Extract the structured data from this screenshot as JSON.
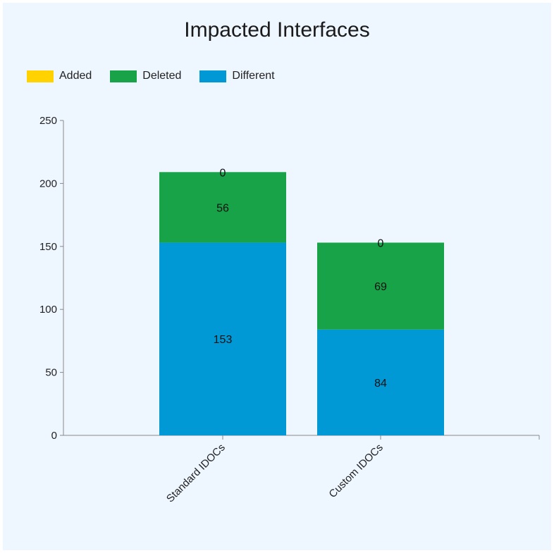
{
  "chart_data": {
    "type": "bar",
    "stacked": true,
    "title": "Impacted Interfaces",
    "xlabel": "",
    "ylabel": "",
    "ylim": [
      0,
      250
    ],
    "yticks": [
      0,
      50,
      100,
      150,
      200,
      250
    ],
    "categories": [
      "Standard IDOCs",
      "Custom IDOCs"
    ],
    "series": [
      {
        "name": "Different",
        "color": "#0099d6",
        "values": [
          153,
          84
        ]
      },
      {
        "name": "Deleted",
        "color": "#18a348",
        "values": [
          56,
          69
        ]
      },
      {
        "name": "Added",
        "color": "#ffd200",
        "values": [
          0,
          0
        ]
      }
    ],
    "legend": {
      "placement": "top-left",
      "items": [
        {
          "name": "Added",
          "color": "#ffd200"
        },
        {
          "name": "Deleted",
          "color": "#18a348"
        },
        {
          "name": "Different",
          "color": "#0099d6"
        }
      ]
    },
    "grid": false
  }
}
